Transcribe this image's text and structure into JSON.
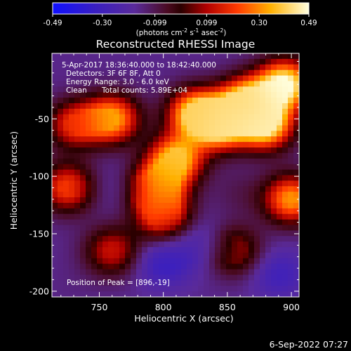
{
  "chart_data": {
    "type": "heatmap",
    "title": "Reconstructed RHESSI Image",
    "xlabel": "Heliocentric X (arcsec)",
    "ylabel": "Heliocentric Y (arcsec)",
    "xlim": [
      713,
      906
    ],
    "ylim": [
      -205,
      7
    ],
    "xticks": [
      750,
      800,
      850,
      900
    ],
    "yticks": [
      -50,
      -100,
      -150,
      -200
    ],
    "colorbar": {
      "min": -0.49,
      "max": 0.49,
      "ticks": [
        "-0.49",
        "-0.30",
        "-0.099",
        "0.099",
        "0.30",
        "0.49"
      ],
      "tick_values": [
        -0.49,
        -0.3,
        -0.099,
        0.099,
        0.3,
        0.49
      ],
      "label_prefix": "(photons cm",
      "label_exp1": "-2",
      "label_mid": " s",
      "label_exp2": "-1",
      "label_mid2": " asec",
      "label_exp3": "-2",
      "label_suffix": ")",
      "colormap": "hot-blue",
      "position": "top"
    },
    "annotations": {
      "time_range": "5-Apr-2017 18:36:40.000 to 18:42:40.000",
      "detectors": "Detectors: 3F 6F 8F, Att 0",
      "energy_range": "Energy Range: 3.0 - 6.0 keV",
      "method": "Clean",
      "total_counts": "Total counts: 5.89E+04",
      "peak_position": "Position of Peak = [896,-19]"
    },
    "intensity_regions": [
      {
        "x": 895,
        "y": -20,
        "value": 0.49
      },
      {
        "x": 880,
        "y": -55,
        "value": 0.46
      },
      {
        "x": 865,
        "y": -35,
        "value": 0.42
      },
      {
        "x": 845,
        "y": -55,
        "value": 0.44
      },
      {
        "x": 825,
        "y": -45,
        "value": 0.4
      },
      {
        "x": 810,
        "y": -85,
        "value": 0.38
      },
      {
        "x": 795,
        "y": -110,
        "value": 0.33
      },
      {
        "x": 800,
        "y": -135,
        "value": 0.22
      },
      {
        "x": 760,
        "y": -50,
        "value": 0.34
      },
      {
        "x": 730,
        "y": -55,
        "value": 0.18
      },
      {
        "x": 725,
        "y": -110,
        "value": 0.22
      },
      {
        "x": 900,
        "y": -120,
        "value": 0.32
      },
      {
        "x": 760,
        "y": -165,
        "value": 0.14
      },
      {
        "x": 855,
        "y": -165,
        "value": 0.12
      },
      {
        "x": 760,
        "y": -110,
        "value": -0.2
      },
      {
        "x": 830,
        "y": -160,
        "value": -0.28
      },
      {
        "x": 800,
        "y": -175,
        "value": -0.33
      },
      {
        "x": 890,
        "y": -185,
        "value": -0.3
      },
      {
        "x": 860,
        "y": -115,
        "value": -0.1
      },
      {
        "x": 730,
        "y": -195,
        "value": -0.15
      }
    ],
    "background_value": -0.16
  },
  "footer": {
    "date": "6-Sep-2022 07:27"
  }
}
